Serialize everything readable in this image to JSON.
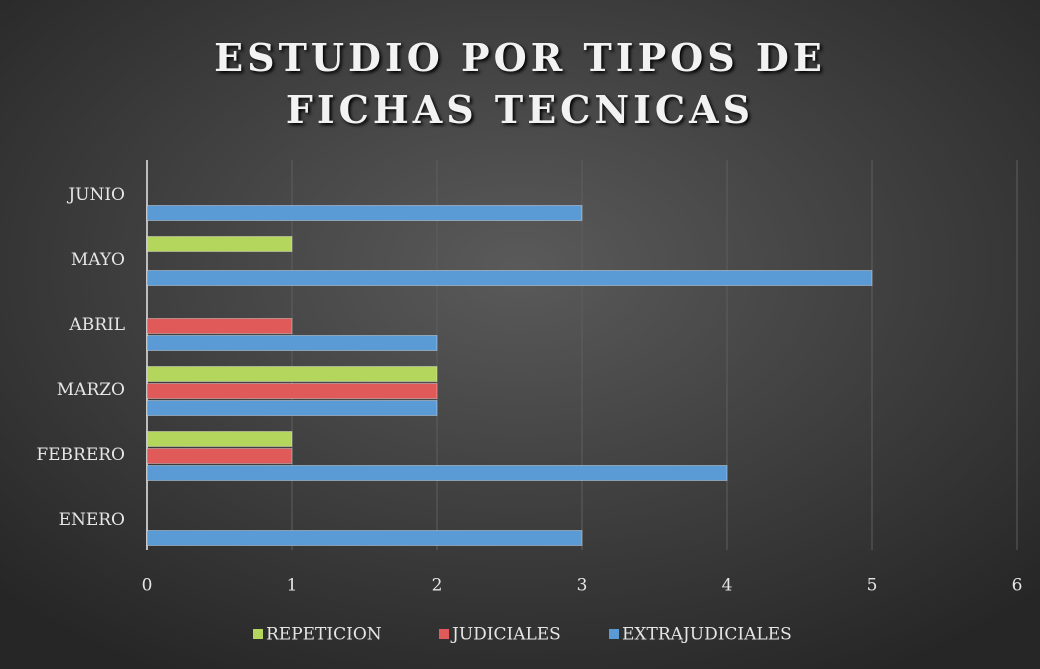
{
  "chart_data": {
    "type": "hbar",
    "title": "ESTUDIO POR TIPOS DE FICHAS TECNICAS",
    "categories": [
      "ENERO",
      "FEBRERO",
      "MARZO",
      "ABRIL",
      "MAYO",
      "JUNIO"
    ],
    "series": [
      {
        "name": "EXTRAJUDICIALES",
        "color": "#5b9bd5",
        "values": [
          3,
          4,
          2,
          2,
          5,
          3
        ]
      },
      {
        "name": "JUDICIALES",
        "color": "#e05a5a",
        "values": [
          null,
          1,
          2,
          1,
          null,
          null
        ]
      },
      {
        "name": "REPETICION",
        "color": "#b4d65c",
        "values": [
          null,
          1,
          2,
          null,
          1,
          null
        ]
      }
    ],
    "xlim": [
      0,
      6
    ],
    "xticks": [
      0,
      1,
      2,
      3,
      4,
      5,
      6
    ],
    "grid": true,
    "legend": "bottom"
  }
}
